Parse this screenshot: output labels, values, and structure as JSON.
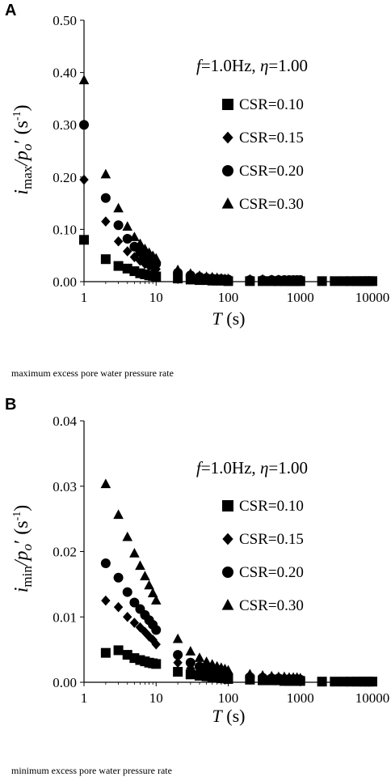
{
  "chart_data": [
    {
      "panel": "A",
      "type": "scatter",
      "x_scale": "log",
      "xlim": [
        1,
        10000
      ],
      "ylim": [
        0,
        0.5
      ],
      "x_ticks": [
        "1",
        "10",
        "100",
        "1000",
        "10000"
      ],
      "y_ticks": [
        "0.00",
        "0.10",
        "0.20",
        "0.30",
        "0.40",
        "0.50"
      ],
      "ylabel": {
        "var": "i",
        "sub": "max",
        "mid": "/p",
        "sub2": "o",
        "tail": "′ (s",
        "sup": "-1",
        "end": ")"
      },
      "xlabel": {
        "var": "T",
        "rest": " (s)"
      },
      "annotation": {
        "f": "f",
        "f_val": "=1.0Hz,  ",
        "eta": "η",
        "eta_val": "=1.00"
      },
      "caption": "maximum excess pore water pressure rate",
      "series": [
        {
          "name": "CSR=0.10",
          "marker": "square",
          "x": [
            1,
            2,
            3,
            4,
            5,
            6,
            7,
            8,
            9,
            10,
            20,
            30,
            40,
            50,
            60,
            70,
            80,
            90,
            100,
            200,
            300,
            400,
            500,
            600,
            700,
            800,
            900,
            1000,
            2000,
            3000,
            4000,
            5000,
            6000,
            7000,
            8000,
            9000,
            10000
          ],
          "y": [
            0.08,
            0.043,
            0.03,
            0.025,
            0.02,
            0.016,
            0.014,
            0.012,
            0.011,
            0.01,
            0.006,
            0.004,
            0.003,
            0.003,
            0.002,
            0.002,
            0.002,
            0.002,
            0.001,
            0.001,
            0.001,
            0.001,
            0.001,
            0.001,
            0.001,
            0.001,
            0.001,
            0.001,
            0.001,
            0.001,
            0.001,
            0.001,
            0.001,
            0.001,
            0.001,
            0.001,
            0.001
          ]
        },
        {
          "name": "CSR=0.15",
          "marker": "diamond",
          "x": [
            1,
            2,
            3,
            4,
            5,
            6,
            7,
            8,
            9,
            10,
            20,
            30,
            40,
            50,
            60,
            70,
            80,
            90,
            100,
            200,
            300,
            400,
            500,
            600,
            700,
            800,
            900,
            1000
          ],
          "y": [
            0.195,
            0.115,
            0.077,
            0.058,
            0.047,
            0.04,
            0.034,
            0.03,
            0.027,
            0.024,
            0.012,
            0.008,
            0.006,
            0.005,
            0.004,
            0.004,
            0.003,
            0.003,
            0.003,
            0.002,
            0.002,
            0.002,
            0.002,
            0.002,
            0.002,
            0.002,
            0.002,
            0.002
          ]
        },
        {
          "name": "CSR=0.20",
          "marker": "circle",
          "x": [
            1,
            2,
            3,
            4,
            5,
            6,
            7,
            8,
            9,
            10,
            20,
            30,
            40,
            50,
            60,
            70,
            80,
            90,
            100,
            200,
            300,
            400,
            500,
            600,
            700,
            800,
            900,
            1000
          ],
          "y": [
            0.3,
            0.16,
            0.108,
            0.082,
            0.067,
            0.057,
            0.049,
            0.043,
            0.038,
            0.034,
            0.017,
            0.012,
            0.009,
            0.007,
            0.006,
            0.005,
            0.005,
            0.004,
            0.004,
            0.003,
            0.003,
            0.003,
            0.003,
            0.003,
            0.003,
            0.003,
            0.003,
            0.003
          ]
        },
        {
          "name": "CSR=0.30",
          "marker": "triangle",
          "x": [
            1,
            2,
            3,
            4,
            5,
            6,
            7,
            8,
            9,
            10,
            20,
            30,
            40,
            50,
            60,
            70,
            80,
            90,
            100,
            200,
            300,
            400,
            500
          ],
          "y": [
            0.385,
            0.205,
            0.14,
            0.105,
            0.085,
            0.072,
            0.062,
            0.055,
            0.049,
            0.044,
            0.022,
            0.015,
            0.011,
            0.009,
            0.008,
            0.007,
            0.006,
            0.005,
            0.005,
            0.004,
            0.004,
            0.003,
            0.003
          ]
        }
      ]
    },
    {
      "panel": "B",
      "type": "scatter",
      "x_scale": "log",
      "xlim": [
        1,
        10000
      ],
      "ylim": [
        0,
        0.04
      ],
      "x_ticks": [
        "1",
        "10",
        "100",
        "1000",
        "10000"
      ],
      "y_ticks": [
        "0.00",
        "0.01",
        "0.02",
        "0.03",
        "0.04"
      ],
      "ylabel": {
        "var": "i",
        "sub": "min",
        "mid": "/p",
        "sub2": "o",
        "tail": "′ (s",
        "sup": "-1",
        "end": ")"
      },
      "xlabel": {
        "var": "T",
        "rest": " (s)"
      },
      "annotation": {
        "f": "f",
        "f_val": "=1.0Hz,  ",
        "eta": "η",
        "eta_val": "=1.00"
      },
      "caption": "minimum excess pore water pressure rate",
      "series": [
        {
          "name": "CSR=0.10",
          "marker": "square",
          "x": [
            2,
            3,
            4,
            5,
            6,
            7,
            8,
            9,
            10,
            20,
            30,
            40,
            50,
            60,
            70,
            80,
            90,
            100,
            200,
            300,
            400,
            500,
            600,
            700,
            800,
            900,
            1000,
            2000,
            3000,
            4000,
            5000,
            6000,
            7000,
            8000,
            9000,
            10000
          ],
          "y": [
            0.0045,
            0.0049,
            0.0042,
            0.0037,
            0.0034,
            0.0032,
            0.003,
            0.0029,
            0.0028,
            0.0016,
            0.0012,
            0.001,
            0.0009,
            0.0008,
            0.0007,
            0.0006,
            0.0006,
            0.0005,
            0.0004,
            0.0003,
            0.0003,
            0.0003,
            0.0002,
            0.0002,
            0.0002,
            0.0002,
            0.0002,
            0.0001,
            0.0001,
            0.0001,
            0.0001,
            0.0001,
            0.0001,
            0.0001,
            0.0001,
            0.0001
          ]
        },
        {
          "name": "CSR=0.15",
          "marker": "diamond",
          "x": [
            2,
            3,
            4,
            5,
            6,
            7,
            8,
            9,
            10,
            20,
            30,
            40,
            50,
            60,
            70,
            80,
            90,
            100,
            200,
            300,
            400,
            500,
            600,
            700,
            800,
            900,
            1000
          ],
          "y": [
            0.0125,
            0.0115,
            0.01,
            0.0091,
            0.0084,
            0.0077,
            0.007,
            0.0065,
            0.0058,
            0.003,
            0.0021,
            0.0017,
            0.0014,
            0.0012,
            0.0011,
            0.001,
            0.0009,
            0.0008,
            0.0006,
            0.0005,
            0.0005,
            0.0004,
            0.0004,
            0.0004,
            0.0004,
            0.0003,
            0.0003
          ]
        },
        {
          "name": "CSR=0.20",
          "marker": "circle",
          "x": [
            2,
            3,
            4,
            5,
            6,
            7,
            8,
            9,
            10,
            20,
            30,
            40,
            50,
            60,
            70,
            80,
            90,
            100,
            200,
            300,
            400,
            500,
            600,
            700,
            800,
            900,
            1000
          ],
          "y": [
            0.0182,
            0.016,
            0.0138,
            0.0122,
            0.0112,
            0.0103,
            0.0095,
            0.0088,
            0.008,
            0.0042,
            0.003,
            0.0024,
            0.002,
            0.0017,
            0.0015,
            0.0013,
            0.0012,
            0.0011,
            0.0008,
            0.0007,
            0.0006,
            0.0006,
            0.0005,
            0.0005,
            0.0005,
            0.0005,
            0.0004
          ]
        },
        {
          "name": "CSR=0.30",
          "marker": "triangle",
          "x": [
            2,
            3,
            4,
            5,
            6,
            7,
            8,
            9,
            10,
            20,
            30,
            40,
            50,
            60,
            70,
            80,
            90,
            100,
            200,
            300,
            400,
            500,
            600,
            700,
            800,
            900,
            1000
          ],
          "y": [
            0.0303,
            0.0256,
            0.0222,
            0.0197,
            0.0178,
            0.0162,
            0.0148,
            0.0136,
            0.0125,
            0.0066,
            0.0047,
            0.0037,
            0.0031,
            0.0027,
            0.0024,
            0.0022,
            0.002,
            0.0018,
            0.0012,
            0.001,
            0.0009,
            0.0008,
            0.0008,
            0.0007,
            0.0007,
            0.0007,
            0.0006
          ]
        }
      ]
    }
  ]
}
